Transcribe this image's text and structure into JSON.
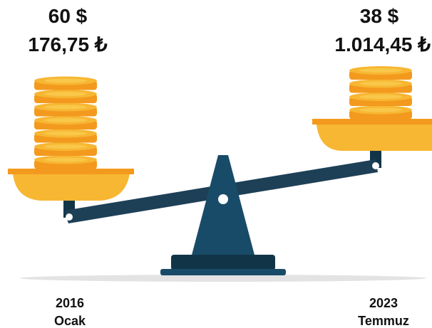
{
  "left": {
    "usd": "60 $",
    "try": "176,75 ₺",
    "year": "2016",
    "month": "Ocak"
  },
  "right": {
    "usd": "38 $",
    "try": "1.014,45 ₺",
    "year": "2023",
    "month": "Temmuz"
  }
}
